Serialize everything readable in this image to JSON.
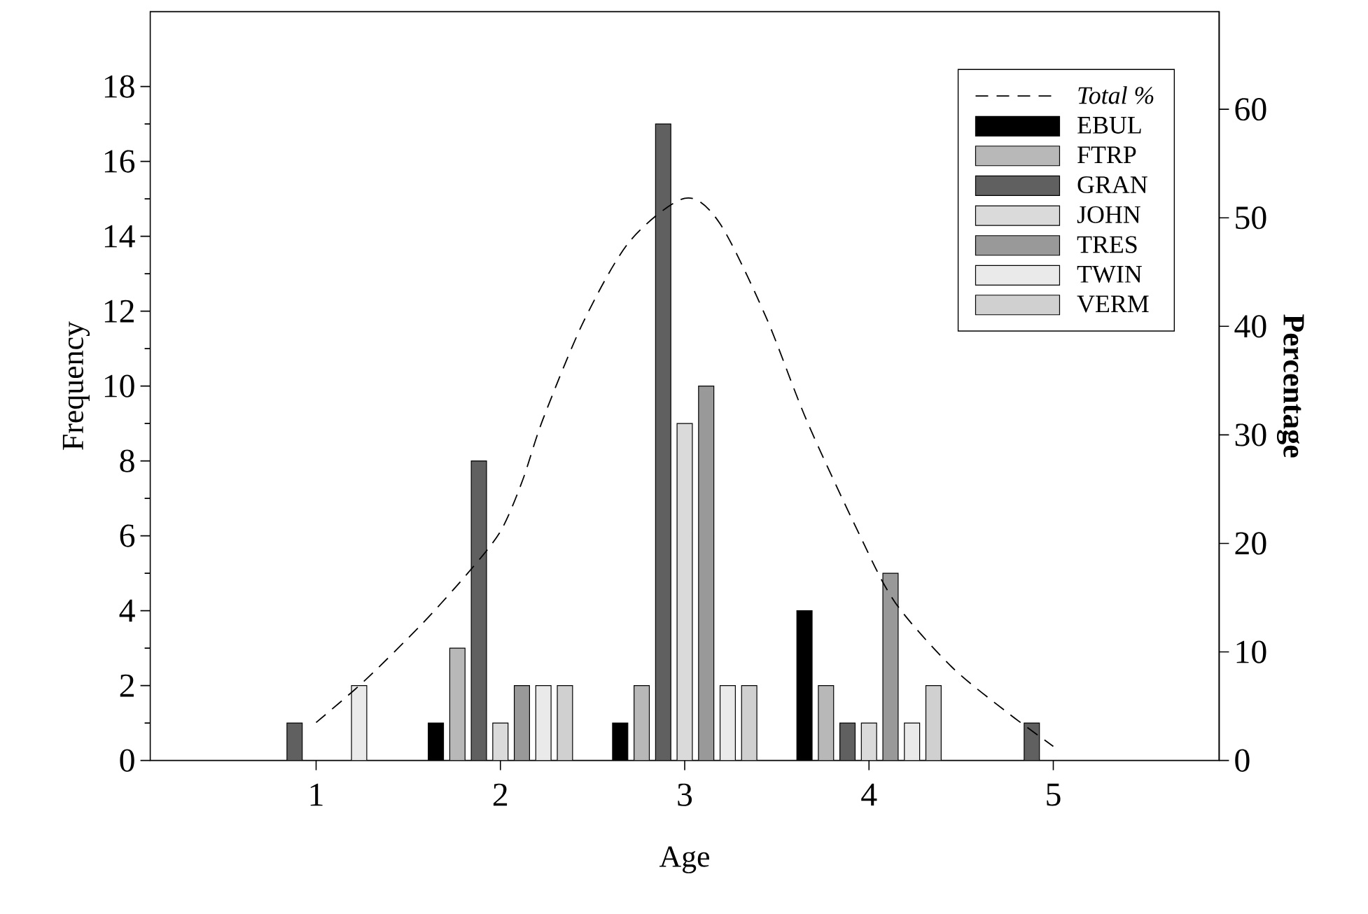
{
  "chart_data": {
    "type": "bar",
    "xlabel": "Age",
    "ylabel": "Frequency",
    "y2label": "Percentage",
    "x": [
      1,
      2,
      3,
      4,
      5
    ],
    "xlim": [
      0.1,
      5.9
    ],
    "xticks": [
      1,
      2,
      3,
      4,
      5
    ],
    "ylim": [
      0,
      20
    ],
    "yticks": [
      0,
      2,
      4,
      6,
      8,
      10,
      12,
      14,
      16,
      18
    ],
    "y2lim": [
      0,
      69
    ],
    "y2ticks": [
      0,
      10,
      20,
      30,
      40,
      50,
      60
    ],
    "legend": "top right",
    "series": [
      {
        "name": "Total %",
        "type": "line",
        "axis": "y2",
        "color": "#000000",
        "line_style": "dashed",
        "marker": "none",
        "x": [
          1.0,
          1.26,
          1.57,
          1.82,
          2.0,
          2.12,
          2.23,
          2.45,
          2.7,
          3.0,
          3.19,
          3.44,
          3.66,
          3.94,
          4.14,
          4.45,
          4.76,
          5.0
        ],
        "values": [
          3.5,
          7.3,
          12.5,
          17.2,
          21.1,
          25.8,
          31.4,
          40.4,
          47.8,
          51.8,
          49.5,
          40.9,
          31.4,
          21.1,
          14.6,
          8.6,
          4.3,
          1.3
        ]
      },
      {
        "name": "EBUL",
        "color": "#000000",
        "values": [
          null,
          1,
          1,
          4,
          null
        ]
      },
      {
        "name": "FTRP",
        "color": "#b8b8b8",
        "values": [
          null,
          3,
          2,
          2,
          null
        ]
      },
      {
        "name": "GRAN",
        "color": "#606060",
        "values": [
          1,
          8,
          17,
          1,
          1
        ]
      },
      {
        "name": "JOHN",
        "color": "#dadada",
        "values": [
          null,
          1,
          9,
          1,
          null
        ]
      },
      {
        "name": "TRES",
        "color": "#999999",
        "values": [
          null,
          2,
          10,
          5,
          null
        ]
      },
      {
        "name": "TWIN",
        "color": "#eaeaea",
        "values": [
          2,
          2,
          2,
          1,
          null
        ]
      },
      {
        "name": "VERM",
        "color": "#d0d0d0",
        "values": [
          null,
          2,
          2,
          2,
          null
        ]
      }
    ]
  }
}
